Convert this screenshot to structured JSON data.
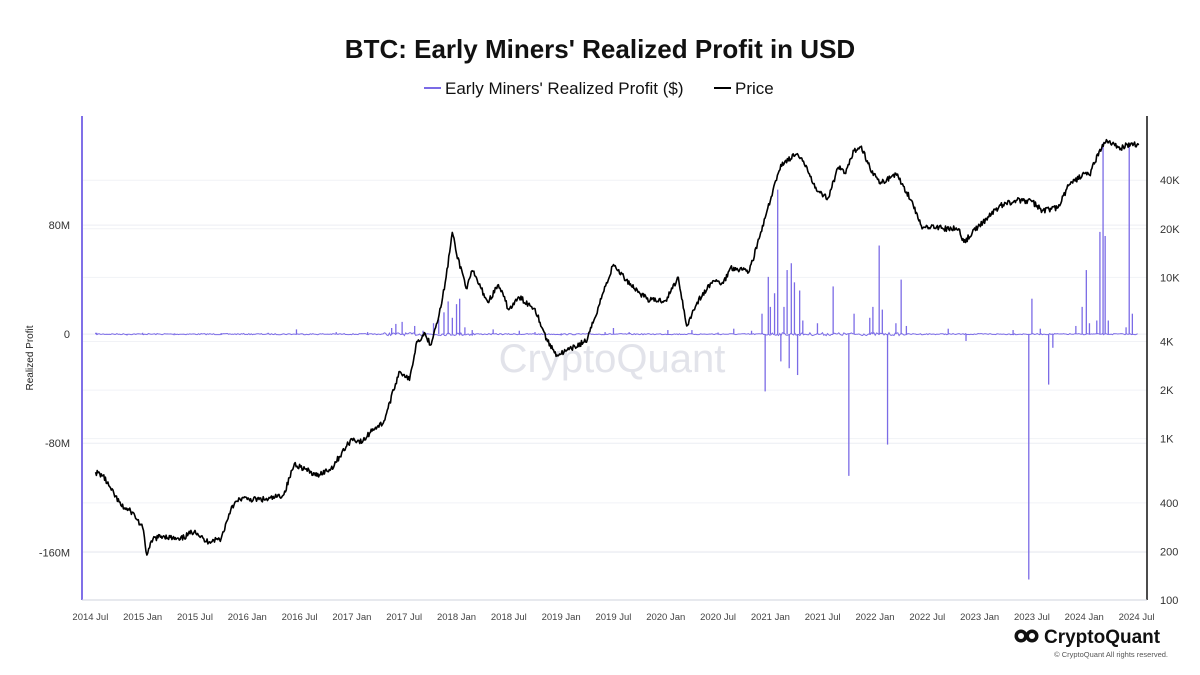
{
  "chart_data": {
    "type": "line",
    "title": "BTC: Early Miners' Realized Profit in USD",
    "legend": [
      {
        "name": "Early Miners' Realized Profit ($)",
        "color": "#7b6be6"
      },
      {
        "name": "Price",
        "color": "#000000"
      }
    ],
    "ylabel": "Realized Profit",
    "ylim_left": [
      -195000000,
      160000000
    ],
    "ylim_right": [
      100,
      100000
    ],
    "yticks_left": [
      {
        "value": 80000000,
        "label": "80M"
      },
      {
        "value": 0,
        "label": "0"
      },
      {
        "value": -80000000,
        "label": "-80M"
      },
      {
        "value": -160000000,
        "label": "-160M"
      }
    ],
    "yticks_right": [
      {
        "value": 40000,
        "label": "40K"
      },
      {
        "value": 20000,
        "label": "20K"
      },
      {
        "value": 10000,
        "label": "10K"
      },
      {
        "value": 4000,
        "label": "4K"
      },
      {
        "value": 2000,
        "label": "2K"
      },
      {
        "value": 1000,
        "label": "1K"
      },
      {
        "value": 400,
        "label": "400"
      },
      {
        "value": 200,
        "label": "200"
      },
      {
        "value": 100,
        "label": "100"
      }
    ],
    "xlim": [
      2014.42,
      2024.6
    ],
    "xticks": [
      {
        "value": 2014.5,
        "label": "2014 Jul"
      },
      {
        "value": 2015.0,
        "label": "2015 Jan"
      },
      {
        "value": 2015.5,
        "label": "2015 Jul"
      },
      {
        "value": 2016.0,
        "label": "2016 Jan"
      },
      {
        "value": 2016.5,
        "label": "2016 Jul"
      },
      {
        "value": 2017.0,
        "label": "2017 Jan"
      },
      {
        "value": 2017.5,
        "label": "2017 Jul"
      },
      {
        "value": 2018.0,
        "label": "2018 Jan"
      },
      {
        "value": 2018.5,
        "label": "2018 Jul"
      },
      {
        "value": 2019.0,
        "label": "2019 Jan"
      },
      {
        "value": 2019.5,
        "label": "2019 Jul"
      },
      {
        "value": 2020.0,
        "label": "2020 Jan"
      },
      {
        "value": 2020.5,
        "label": "2020 Jul"
      },
      {
        "value": 2021.0,
        "label": "2021 Jan"
      },
      {
        "value": 2021.5,
        "label": "2021 Jul"
      },
      {
        "value": 2022.0,
        "label": "2022 Jan"
      },
      {
        "value": 2022.5,
        "label": "2022 Jul"
      },
      {
        "value": 2023.0,
        "label": "2023 Jan"
      },
      {
        "value": 2023.5,
        "label": "2023 Jul"
      },
      {
        "value": 2024.0,
        "label": "2024 Jan"
      },
      {
        "value": 2024.5,
        "label": "2024 Jul"
      }
    ],
    "price_series": {
      "name": "Price",
      "points": [
        [
          2014.55,
          620
        ],
        [
          2014.62,
          590
        ],
        [
          2014.7,
          480
        ],
        [
          2014.8,
          380
        ],
        [
          2014.9,
          350
        ],
        [
          2015.0,
          280
        ],
        [
          2015.04,
          190
        ],
        [
          2015.1,
          240
        ],
        [
          2015.2,
          250
        ],
        [
          2015.35,
          235
        ],
        [
          2015.5,
          270
        ],
        [
          2015.6,
          230
        ],
        [
          2015.75,
          240
        ],
        [
          2015.85,
          380
        ],
        [
          2015.95,
          430
        ],
        [
          2016.0,
          420
        ],
        [
          2016.2,
          420
        ],
        [
          2016.35,
          450
        ],
        [
          2016.45,
          700
        ],
        [
          2016.55,
          650
        ],
        [
          2016.65,
          590
        ],
        [
          2016.8,
          650
        ],
        [
          2016.95,
          900
        ],
        [
          2017.0,
          1000
        ],
        [
          2017.1,
          950
        ],
        [
          2017.2,
          1150
        ],
        [
          2017.3,
          1250
        ],
        [
          2017.4,
          2000
        ],
        [
          2017.45,
          2600
        ],
        [
          2017.5,
          2500
        ],
        [
          2017.55,
          2300
        ],
        [
          2017.62,
          4000
        ],
        [
          2017.7,
          4500
        ],
        [
          2017.75,
          3800
        ],
        [
          2017.85,
          6500
        ],
        [
          2017.9,
          10000
        ],
        [
          2017.96,
          19000
        ],
        [
          2018.0,
          14000
        ],
        [
          2018.1,
          8500
        ],
        [
          2018.15,
          11000
        ],
        [
          2018.3,
          7000
        ],
        [
          2018.4,
          9000
        ],
        [
          2018.5,
          6300
        ],
        [
          2018.6,
          7500
        ],
        [
          2018.75,
          6400
        ],
        [
          2018.87,
          4000
        ],
        [
          2018.96,
          3300
        ],
        [
          2019.1,
          3600
        ],
        [
          2019.25,
          4100
        ],
        [
          2019.4,
          8000
        ],
        [
          2019.5,
          12000
        ],
        [
          2019.6,
          10000
        ],
        [
          2019.75,
          8000
        ],
        [
          2019.85,
          7200
        ],
        [
          2020.0,
          7200
        ],
        [
          2020.12,
          10000
        ],
        [
          2020.2,
          5000
        ],
        [
          2020.3,
          7000
        ],
        [
          2020.45,
          9500
        ],
        [
          2020.55,
          9200
        ],
        [
          2020.62,
          11500
        ],
        [
          2020.8,
          11000
        ],
        [
          2020.9,
          18000
        ],
        [
          2021.0,
          30000
        ],
        [
          2021.1,
          50000
        ],
        [
          2021.25,
          58000
        ],
        [
          2021.35,
          48000
        ],
        [
          2021.45,
          34000
        ],
        [
          2021.55,
          31000
        ],
        [
          2021.65,
          48000
        ],
        [
          2021.72,
          44000
        ],
        [
          2021.8,
          61000
        ],
        [
          2021.87,
          65000
        ],
        [
          2021.95,
          48000
        ],
        [
          2022.05,
          38000
        ],
        [
          2022.2,
          44000
        ],
        [
          2022.35,
          30000
        ],
        [
          2022.45,
          20000
        ],
        [
          2022.55,
          21000
        ],
        [
          2022.65,
          20000
        ],
        [
          2022.8,
          20000
        ],
        [
          2022.85,
          16500
        ],
        [
          2023.0,
          21000
        ],
        [
          2023.2,
          28000
        ],
        [
          2023.35,
          30000
        ],
        [
          2023.5,
          29500
        ],
        [
          2023.6,
          26000
        ],
        [
          2023.75,
          27000
        ],
        [
          2023.85,
          37000
        ],
        [
          2024.0,
          44000
        ],
        [
          2024.05,
          43000
        ],
        [
          2024.15,
          62000
        ],
        [
          2024.22,
          70000
        ],
        [
          2024.35,
          63000
        ],
        [
          2024.45,
          68000
        ],
        [
          2024.52,
          66000
        ]
      ]
    },
    "profit_series": {
      "name": "Early Miners' Realized Profit ($)",
      "spikes": [
        [
          2014.56,
          1000000
        ],
        [
          2014.85,
          -1000000
        ],
        [
          2015.0,
          1000000
        ],
        [
          2015.3,
          -800000
        ],
        [
          2015.75,
          800000
        ],
        [
          2016.2,
          1000000
        ],
        [
          2016.47,
          3500000
        ],
        [
          2016.85,
          1500000
        ],
        [
          2017.15,
          1500000
        ],
        [
          2017.38,
          4500000
        ],
        [
          2017.42,
          7500000
        ],
        [
          2017.48,
          9000000
        ],
        [
          2017.6,
          6000000
        ],
        [
          2017.68,
          2500000
        ],
        [
          2017.78,
          8000000
        ],
        [
          2017.83,
          11000000
        ],
        [
          2017.88,
          16000000
        ],
        [
          2017.92,
          24000000
        ],
        [
          2017.96,
          12000000
        ],
        [
          2018.0,
          22000000
        ],
        [
          2018.03,
          26000000
        ],
        [
          2018.08,
          5000000
        ],
        [
          2018.15,
          3000000
        ],
        [
          2018.35,
          3500000
        ],
        [
          2018.6,
          2500000
        ],
        [
          2018.75,
          1500000
        ],
        [
          2019.0,
          -1000000
        ],
        [
          2019.42,
          1500000
        ],
        [
          2019.5,
          4500000
        ],
        [
          2019.65,
          1500000
        ],
        [
          2020.02,
          3000000
        ],
        [
          2020.25,
          3000000
        ],
        [
          2020.5,
          1200000
        ],
        [
          2020.65,
          4000000
        ],
        [
          2020.82,
          2500000
        ],
        [
          2020.92,
          15000000
        ],
        [
          2020.95,
          -42000000
        ],
        [
          2020.98,
          42000000
        ],
        [
          2021.0,
          20000000
        ],
        [
          2021.04,
          30000000
        ],
        [
          2021.07,
          106000000
        ],
        [
          2021.1,
          -20000000
        ],
        [
          2021.13,
          20000000
        ],
        [
          2021.16,
          47000000
        ],
        [
          2021.18,
          -25000000
        ],
        [
          2021.2,
          52000000
        ],
        [
          2021.23,
          38000000
        ],
        [
          2021.26,
          -30000000
        ],
        [
          2021.28,
          32000000
        ],
        [
          2021.31,
          10000000
        ],
        [
          2021.45,
          8000000
        ],
        [
          2021.6,
          35000000
        ],
        [
          2021.75,
          -104000000
        ],
        [
          2021.8,
          15000000
        ],
        [
          2021.95,
          12000000
        ],
        [
          2021.98,
          20000000
        ],
        [
          2022.04,
          65000000
        ],
        [
          2022.07,
          18000000
        ],
        [
          2022.12,
          -81000000
        ],
        [
          2022.2,
          8000000
        ],
        [
          2022.25,
          40000000
        ],
        [
          2022.3,
          6000000
        ],
        [
          2022.7,
          4000000
        ],
        [
          2022.87,
          -5000000
        ],
        [
          2023.32,
          3000000
        ],
        [
          2023.47,
          -180000000
        ],
        [
          2023.5,
          26000000
        ],
        [
          2023.58,
          4000000
        ],
        [
          2023.66,
          -37000000
        ],
        [
          2023.7,
          -10000000
        ],
        [
          2023.92,
          6000000
        ],
        [
          2023.98,
          20000000
        ],
        [
          2024.02,
          47000000
        ],
        [
          2024.05,
          8000000
        ],
        [
          2024.12,
          10000000
        ],
        [
          2024.15,
          75000000
        ],
        [
          2024.18,
          140000000
        ],
        [
          2024.2,
          72000000
        ],
        [
          2024.23,
          10000000
        ],
        [
          2024.4,
          5000000
        ],
        [
          2024.43,
          140000000
        ],
        [
          2024.46,
          15000000
        ]
      ]
    }
  },
  "watermark": "CryptoQuant",
  "footer": {
    "brand": "CryptoQuant",
    "copyright": "© CryptoQuant All rights reserved."
  }
}
